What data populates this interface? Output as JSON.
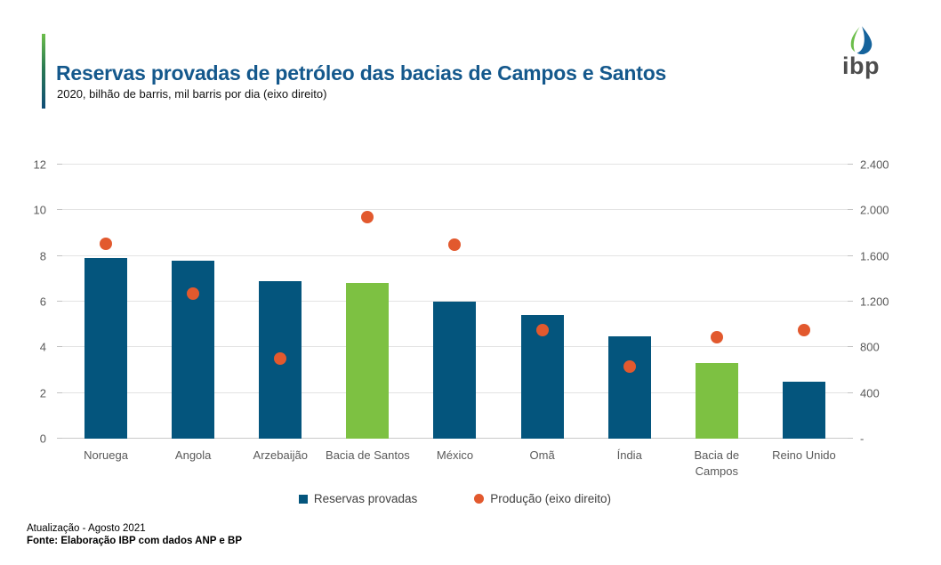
{
  "header": {
    "logo": {
      "text": "ibp"
    }
  },
  "chart_data": {
    "type": "bar",
    "title": "Reservas provadas de petróleo das bacias de Campos e Santos",
    "subtitle": "2020, bilhão de barris, mil barris por dia (eixo direito)",
    "categories": [
      "Noruega",
      "Angola",
      "Arzebaijão",
      "Bacia de Santos",
      "México",
      "Omã",
      "Índia",
      "Bacia de Campos",
      "Reino Unido"
    ],
    "series": [
      {
        "name": "Reservas provadas",
        "type": "bar",
        "axis": "left",
        "unit": "bilhão de barris",
        "values": [
          7.9,
          7.8,
          6.9,
          6.8,
          6.0,
          5.4,
          4.5,
          3.3,
          2.5
        ],
        "bar_colors": [
          "#04557d",
          "#04557d",
          "#04557d",
          "#7dc142",
          "#04557d",
          "#04557d",
          "#04557d",
          "#7dc142",
          "#04557d"
        ]
      },
      {
        "name": "Produção (eixo direito)",
        "type": "scatter",
        "axis": "right",
        "unit": "mil barris por dia",
        "values": [
          1710,
          1270,
          700,
          1940,
          1700,
          950,
          630,
          890,
          950
        ],
        "color": "#e2592e"
      }
    ],
    "left_axis": {
      "min": 0,
      "max": 12,
      "tick_values": [
        12,
        10,
        8,
        6,
        4,
        2,
        0
      ],
      "tick_labels": [
        "12",
        "10",
        "8",
        "6",
        "4",
        "2",
        "0"
      ]
    },
    "right_axis": {
      "min": 0,
      "max": 2400,
      "tick_values": [
        2400,
        2000,
        1600,
        1200,
        800,
        400,
        0
      ],
      "tick_labels": [
        "2.400",
        "2.000",
        "1.600",
        "1.200",
        "800",
        "400",
        "-"
      ]
    },
    "grid": true,
    "legend_position": "bottom"
  },
  "legend": {
    "items": [
      {
        "label": "Reservas provadas",
        "shape": "square",
        "color": "#04557d"
      },
      {
        "label": "Produção (eixo direito)",
        "shape": "circle",
        "color": "#e2592e"
      }
    ]
  },
  "footer": {
    "update_line": "Atualização - Agosto 2021",
    "source_line": "Fonte: Elaboração IBP com dados ANP e BP"
  },
  "colors": {
    "title": "#14588c",
    "bar_blue": "#04557d",
    "bar_green": "#7dc142",
    "dot_orange": "#e2592e",
    "axis_text": "#595959",
    "legend_text": "#404040",
    "gridline": "#e3e3e3",
    "accent_green": "#6cbe4b",
    "accent_blue": "#0f4d77"
  }
}
